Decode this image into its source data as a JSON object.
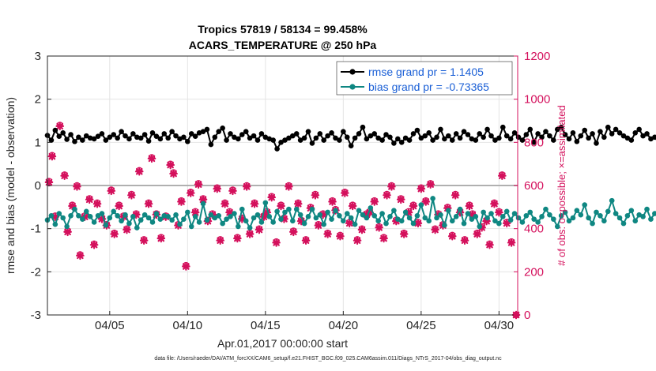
{
  "chart_data": {
    "type": "line",
    "title": "Tropics 57819 / 58134 = 99.458%",
    "subtitle": "ACARS_TEMPERATURE @ 250 hPa",
    "xlabel": "Apr.01,2017 00:00:00 start",
    "ylabel_left": "rmse and bias (model - observation)",
    "ylabel_right": "# of obs: o=possible; ×=assimilated",
    "xlim": [
      1,
      31.2
    ],
    "ylim_left": [
      -3,
      3
    ],
    "ylim_right": [
      0,
      1200
    ],
    "x_ticks": [
      5,
      10,
      15,
      20,
      25,
      30
    ],
    "x_tick_labels": [
      "04/05",
      "04/10",
      "04/15",
      "04/20",
      "04/25",
      "04/30"
    ],
    "y_ticks_left": [
      -3,
      -2,
      -1,
      0,
      1,
      2,
      3
    ],
    "y_ticks_right": [
      0,
      200,
      400,
      600,
      800,
      1000,
      1200
    ],
    "grid": true,
    "legend_position": "top-right",
    "x_start": 1.0,
    "x_step": 0.25,
    "series": [
      {
        "name": "rmse grand pr = 1.1405",
        "axis": "left",
        "color": "#000000",
        "values": [
          1.16,
          1.05,
          1.28,
          1.14,
          1.22,
          1.07,
          1.18,
          1.02,
          1.12,
          1.05,
          1.15,
          1.1,
          1.08,
          1.14,
          1.2,
          1.05,
          1.12,
          1.18,
          1.1,
          1.25,
          1.15,
          1.08,
          1.2,
          1.12,
          1.1,
          1.18,
          1.03,
          1.22,
          1.14,
          1.08,
          1.2,
          1.1,
          1.25,
          1.15,
          1.08,
          1.12,
          1.02,
          1.2,
          1.14,
          1.22,
          1.25,
          1.3,
          0.95,
          1.12,
          1.25,
          1.33,
          1.05,
          1.2,
          1.12,
          1.08,
          1.18,
          1.25,
          1.1,
          1.15,
          1.05,
          1.2,
          1.12,
          1.08,
          1.05,
          0.85,
          1.0,
          1.05,
          1.1,
          1.15,
          1.2,
          1.05,
          1.1,
          1.25,
          0.98,
          1.1,
          1.2,
          1.05,
          1.15,
          1.22,
          1.1,
          1.05,
          1.25,
          1.12,
          0.92,
          1.1,
          1.2,
          1.35,
          1.08,
          1.15,
          1.2,
          1.1,
          1.05,
          1.18,
          1.12,
          0.98,
          1.08,
          1.0,
          1.1,
          1.05,
          1.2,
          1.28,
          1.1,
          1.15,
          1.22,
          1.05,
          1.12,
          1.3,
          1.08,
          1.15,
          1.05,
          1.2,
          1.1,
          1.25,
          1.18,
          1.08,
          1.05,
          1.2,
          1.12,
          1.3,
          1.15,
          1.05,
          1.1,
          1.35,
          1.15,
          1.08,
          1.22,
          1.12,
          1.05,
          1.18,
          1.3,
          1.0,
          1.2,
          1.12,
          1.25,
          1.15,
          1.05,
          1.3,
          1.35,
          1.18,
          1.08,
          1.22,
          1.02,
          1.15,
          1.28,
          1.1,
          1.2,
          0.98,
          1.25,
          1.12,
          1.35,
          1.2,
          1.3,
          1.22,
          1.15,
          1.1,
          1.05,
          1.22,
          1.3,
          1.15,
          1.2,
          1.08,
          1.12,
          1.0,
          1.18,
          1.05,
          1.22,
          1.15,
          1.1,
          1.2,
          1.08,
          1.15,
          1.02,
          1.18,
          1.12,
          1.05,
          1.25,
          1.15,
          1.2,
          1.1,
          1.08,
          1.28,
          1.36,
          1.32,
          1.3,
          1.25,
          1.32,
          1.2,
          1.28,
          1.15,
          1.24,
          1.35,
          1.22,
          1.3,
          1.18,
          1.25,
          1.12,
          1.3,
          1.2,
          1.38,
          1.25,
          1.22,
          1.3,
          1.25,
          1.02
        ]
      },
      {
        "name": "bias grand pr = -0.73365",
        "axis": "left",
        "color": "#0f8782",
        "values": [
          -0.8,
          -0.7,
          -0.9,
          -0.65,
          -0.75,
          -0.95,
          -0.7,
          -0.55,
          -0.7,
          -0.78,
          -0.6,
          -0.72,
          -0.85,
          -0.7,
          -0.65,
          -0.92,
          -0.75,
          -0.6,
          -0.7,
          -0.82,
          -0.68,
          -0.88,
          -0.72,
          -0.98,
          -0.8,
          -0.68,
          -0.75,
          -0.85,
          -0.65,
          -0.78,
          -0.7,
          -0.72,
          -0.8,
          -0.68,
          -0.9,
          -0.78,
          -0.62,
          -0.95,
          -0.72,
          -0.85,
          -0.42,
          -0.8,
          -0.68,
          -0.75,
          -0.7,
          -0.88,
          -0.78,
          -0.72,
          -0.65,
          -0.95,
          -0.55,
          -0.82,
          -0.98,
          -0.75,
          -0.68,
          -0.85,
          -0.4,
          -0.72,
          -0.85,
          -0.6,
          -0.78,
          -0.62,
          -0.55,
          -0.82,
          -0.55,
          -0.68,
          -0.88,
          -0.72,
          -0.55,
          -0.75,
          -0.68,
          -0.9,
          -0.62,
          -0.78,
          -0.58,
          -0.7,
          -0.82,
          -0.65,
          -0.75,
          -0.9,
          -0.58,
          -0.68,
          -0.75,
          -0.52,
          -0.7,
          -0.82,
          -0.65,
          -0.88,
          -0.72,
          -0.58,
          -0.78,
          -0.82,
          -0.62,
          -0.75,
          -0.88,
          -0.7,
          -0.45,
          -0.75,
          -0.82,
          -0.3,
          -0.75,
          -0.68,
          -0.92,
          -0.58,
          -0.82,
          -0.72,
          -0.55,
          -0.88,
          -0.65,
          -0.78,
          -0.72,
          -0.95,
          -0.62,
          -0.75,
          -0.65,
          -0.82,
          -0.88,
          -0.72,
          -0.6,
          -0.8,
          -0.65,
          -0.75,
          -0.85,
          -0.7,
          -0.62,
          -0.78,
          -0.85,
          -0.72,
          -0.55,
          -0.68,
          -0.78,
          -0.95,
          -0.7,
          -0.62,
          -0.82,
          -0.75,
          -0.58,
          -0.68,
          -0.45,
          -0.75,
          -0.88,
          -0.62,
          -0.7,
          -0.82,
          -0.6,
          -0.35,
          -0.65,
          -0.75,
          -0.88,
          -0.7,
          -0.58,
          -0.82,
          -0.68,
          -0.72,
          -0.55,
          -0.78,
          -0.65,
          -0.72,
          -0.88,
          -0.6,
          -0.75,
          -0.92,
          -0.68,
          -0.58,
          -0.78,
          -0.85,
          -0.72,
          -0.65,
          -0.8,
          -0.58,
          -0.7,
          -0.82,
          -0.62,
          -0.75,
          -0.7,
          -0.88,
          -0.68,
          -0.75,
          -0.85,
          -0.72,
          -0.6,
          -0.78,
          -0.95,
          -0.68,
          -0.55,
          -0.75,
          -0.85,
          -0.7,
          -0.92,
          -0.65,
          -0.78,
          -0.72,
          -0.85,
          -0.68,
          -0.62,
          -0.75,
          -0.82,
          -0.55
        ]
      }
    ],
    "scatter_series": [
      {
        "name": "obs possible (o)",
        "axis": "right",
        "marker": "circle",
        "color": "#d4105c",
        "x": [
          1.1,
          1.3,
          1.5,
          1.8,
          2.1,
          2.3,
          2.6,
          2.9,
          3.1,
          3.4,
          3.7,
          4.0,
          4.2,
          4.5,
          4.8,
          5.1,
          5.3,
          5.6,
          5.9,
          6.1,
          6.4,
          6.7,
          6.9,
          7.2,
          7.5,
          7.7,
          8.0,
          8.3,
          8.6,
          8.9,
          9.1,
          9.4,
          9.6,
          9.9,
          10.2,
          10.5,
          10.7,
          11.0,
          11.3,
          11.6,
          11.9,
          12.1,
          12.4,
          12.7,
          12.9,
          13.2,
          13.5,
          13.8,
          14.0,
          14.3,
          14.6,
          14.9,
          15.1,
          15.4,
          15.7,
          16.0,
          16.2,
          16.5,
          16.8,
          17.1,
          17.3,
          17.6,
          17.9,
          18.2,
          18.4,
          18.7,
          19.0,
          19.3,
          19.5,
          19.8,
          20.1,
          20.4,
          20.6,
          20.9,
          21.2,
          21.5,
          21.7,
          22.0,
          22.3,
          22.6,
          22.8,
          23.1,
          23.4,
          23.7,
          23.9,
          24.2,
          24.5,
          24.8,
          25.0,
          25.3,
          25.6,
          25.9,
          26.1,
          26.4,
          26.7,
          27.0,
          27.2,
          27.5,
          27.8,
          28.1,
          28.3,
          28.6,
          28.9,
          29.2,
          29.4,
          29.7,
          30.0,
          30.2,
          30.5,
          30.8,
          31.1
        ],
        "values": [
          620,
          740,
          460,
          880,
          650,
          390,
          510,
          600,
          280,
          460,
          540,
          330,
          520,
          450,
          420,
          580,
          380,
          510,
          460,
          400,
          560,
          470,
          670,
          350,
          520,
          730,
          470,
          360,
          460,
          700,
          660,
          420,
          530,
          230,
          570,
          480,
          610,
          540,
          440,
          470,
          590,
          350,
          520,
          480,
          580,
          360,
          450,
          600,
          380,
          520,
          400,
          460,
          480,
          550,
          340,
          510,
          450,
          600,
          390,
          520,
          440,
          350,
          500,
          560,
          420,
          470,
          380,
          530,
          490,
          370,
          570,
          430,
          510,
          350,
          400,
          470,
          480,
          530,
          410,
          360,
          560,
          600,
          440,
          540,
          380,
          480,
          510,
          430,
          590,
          530,
          610,
          400,
          470,
          420,
          500,
          370,
          560,
          480,
          350,
          510,
          470,
          380,
          410,
          440,
          330,
          520,
          480,
          650,
          430,
          340,
          0
        ]
      },
      {
        "name": "obs assimilated (×)",
        "axis": "right",
        "marker": "cross",
        "color": "#d4105c",
        "x": [
          1.1,
          1.3,
          1.5,
          1.8,
          2.1,
          2.3,
          2.6,
          2.9,
          3.1,
          3.4,
          3.7,
          4.0,
          4.2,
          4.5,
          4.8,
          5.1,
          5.3,
          5.6,
          5.9,
          6.1,
          6.4,
          6.7,
          6.9,
          7.2,
          7.5,
          7.7,
          8.0,
          8.3,
          8.6,
          8.9,
          9.1,
          9.4,
          9.6,
          9.9,
          10.2,
          10.5,
          10.7,
          11.0,
          11.3,
          11.6,
          11.9,
          12.1,
          12.4,
          12.7,
          12.9,
          13.2,
          13.5,
          13.8,
          14.0,
          14.3,
          14.6,
          14.9,
          15.1,
          15.4,
          15.7,
          16.0,
          16.2,
          16.5,
          16.8,
          17.1,
          17.3,
          17.6,
          17.9,
          18.2,
          18.4,
          18.7,
          19.0,
          19.3,
          19.5,
          19.8,
          20.1,
          20.4,
          20.6,
          20.9,
          21.2,
          21.5,
          21.7,
          22.0,
          22.3,
          22.6,
          22.8,
          23.1,
          23.4,
          23.7,
          23.9,
          24.2,
          24.5,
          24.8,
          25.0,
          25.3,
          25.6,
          25.9,
          26.1,
          26.4,
          26.7,
          27.0,
          27.2,
          27.5,
          27.8,
          28.1,
          28.3,
          28.6,
          28.9,
          29.2,
          29.4,
          29.7,
          30.0,
          30.2,
          30.5,
          30.8,
          31.1
        ],
        "values": [
          615,
          735,
          455,
          875,
          645,
          385,
          505,
          595,
          275,
          455,
          535,
          325,
          515,
          445,
          415,
          575,
          375,
          505,
          455,
          395,
          555,
          465,
          665,
          345,
          515,
          725,
          465,
          355,
          455,
          695,
          655,
          415,
          525,
          225,
          565,
          475,
          605,
          535,
          435,
          465,
          585,
          345,
          515,
          475,
          575,
          355,
          445,
          595,
          375,
          515,
          395,
          455,
          475,
          545,
          335,
          505,
          445,
          595,
          385,
          515,
          435,
          345,
          495,
          555,
          415,
          465,
          375,
          525,
          485,
          365,
          565,
          425,
          505,
          345,
          395,
          465,
          475,
          525,
          405,
          355,
          555,
          595,
          435,
          535,
          375,
          475,
          505,
          425,
          585,
          525,
          605,
          395,
          465,
          415,
          495,
          365,
          555,
          475,
          345,
          505,
          465,
          375,
          405,
          435,
          325,
          515,
          475,
          645,
          425,
          335,
          0
        ]
      }
    ]
  },
  "legend": [
    {
      "label": "rmse grand pr = 1.1405",
      "color": "#000000"
    },
    {
      "label": "bias grand pr = -0.73365",
      "color": "#0f8782"
    }
  ],
  "footnote": "data file: /Users/raeder/DAI/ATM_forcXX/CAM6_setup/f.e21.FHIST_BGC.f09_025.CAM6assim.011/Diags_NTrS_2017-04/obs_diag_output.nc",
  "colors": {
    "rmse": "#000000",
    "bias": "#0f8782",
    "obs": "#d4105c",
    "legend_text": "#1a5fd6",
    "zero_line": "#b0b0b0",
    "grid": "#e4e4e4"
  }
}
